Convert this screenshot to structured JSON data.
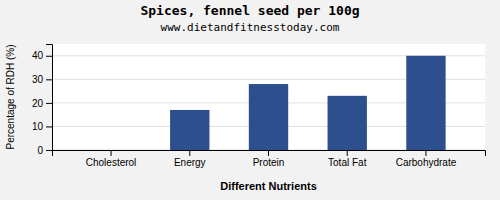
{
  "chart_data": {
    "type": "bar",
    "title": "Spices, fennel seed per 100g",
    "subtitle": "www.dietandfitnesstoday.com",
    "xlabel": "Different Nutrients",
    "ylabel": "Percentage of RDH (%)",
    "categories": [
      "Cholesterol",
      "Energy",
      "Protein",
      "Total Fat",
      "Carbohydrate"
    ],
    "values": [
      0,
      17,
      28,
      23,
      40
    ],
    "color": "#2d4f8e",
    "ylim": [
      0,
      45
    ],
    "yticks": [
      0,
      10,
      20,
      30,
      40
    ],
    "grid": true
  }
}
